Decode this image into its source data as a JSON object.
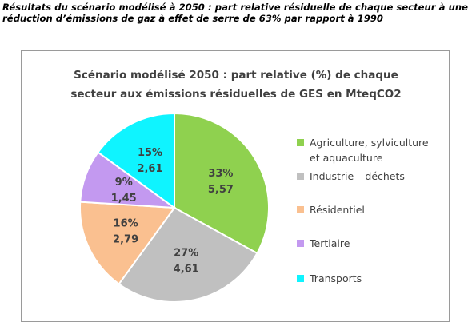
{
  "heading": {
    "text": "Résultats du scénario modélisé à 2050 : part relative résiduelle de chaque secteur à une réduction d’émissions de gaz à effet de serre de 63% par rapport à 1990"
  },
  "chart_data": {
    "type": "pie",
    "title_line1": "Scénario modélisé 2050  : part relative (%) de chaque",
    "title_line2": "secteur aux émissions résiduelles de GES en MteqCO2",
    "slices": [
      {
        "name": "Agriculture, sylviculture et aquaculture",
        "percent": 33,
        "percent_label": "33%",
        "value_label": "5,57",
        "value": 5.57,
        "color": "#8fd14f"
      },
      {
        "name": "Industrie – déchets",
        "percent": 27,
        "percent_label": "27%",
        "value_label": "4,61",
        "value": 4.61,
        "color": "#c0c0c0"
      },
      {
        "name": "Résidentiel",
        "percent": 16,
        "percent_label": "16%",
        "value_label": "2,79",
        "value": 2.79,
        "color": "#fac090"
      },
      {
        "name": "Tertiaire",
        "percent": 9,
        "percent_label": "9%",
        "value_label": "1,45",
        "value": 1.45,
        "color": "#c399f0"
      },
      {
        "name": "Transports",
        "percent": 15,
        "percent_label": "15%",
        "value_label": "2,61",
        "value": 2.61,
        "color": "#0ff4ff"
      }
    ],
    "legend": {
      "placement": "right",
      "items": [
        {
          "line1": "Agriculture, sylviculture",
          "line2": "et aquaculture",
          "color": "#8fd14f"
        },
        {
          "line1": "Industrie – déchets",
          "color": "#c0c0c0"
        },
        {
          "line1": "Résidentiel",
          "color": "#fac090"
        },
        {
          "line1": "Tertiaire",
          "color": "#c399f0"
        },
        {
          "line1": "Transports",
          "color": "#0ff4ff"
        }
      ]
    },
    "label_color": "#404040"
  }
}
